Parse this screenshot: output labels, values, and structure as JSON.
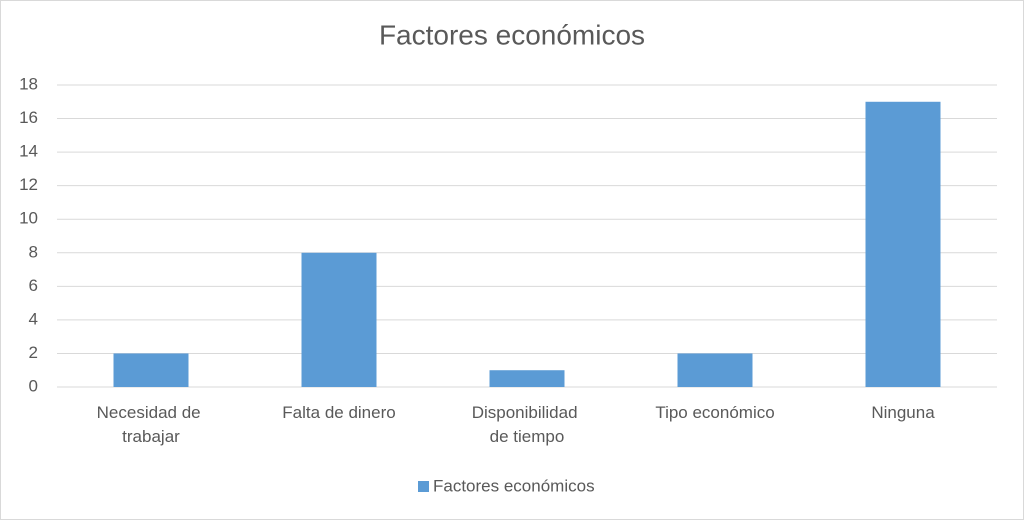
{
  "chart_data": {
    "type": "bar",
    "title": "Factores económicos",
    "categories": [
      "Necesidad de trabajar",
      "Falta de dinero",
      "Disponibilidad de tiempo",
      "Tipo económico",
      "Ninguna"
    ],
    "series": [
      {
        "name": "Factores económicos",
        "color": "#5b9bd5",
        "values": [
          2,
          8,
          1,
          2,
          17
        ]
      }
    ],
    "ylim": [
      0,
      18
    ],
    "yticks": [
      0,
      2,
      4,
      6,
      8,
      10,
      12,
      14,
      16,
      18
    ],
    "grid": true,
    "legend": "bottom"
  }
}
